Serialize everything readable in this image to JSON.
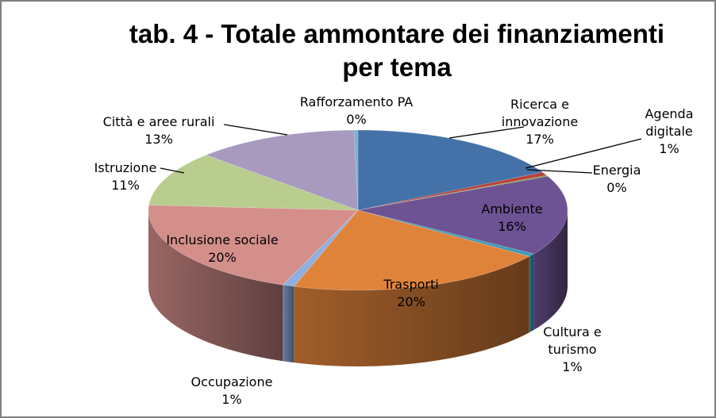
{
  "chart_data": {
    "type": "pie",
    "title_line1": "tab. 4 - Totale ammontare dei finanziamenti",
    "title_line2": "per tema",
    "colors_note": "3D pie chart",
    "slices": [
      {
        "name": "Ricerca e innovazione",
        "label_lines": [
          "Ricerca e",
          "innovazione"
        ],
        "pct_label": "17%",
        "value": 17,
        "color": "#4472a8"
      },
      {
        "name": "Agenda digitale",
        "label_lines": [
          "Agenda",
          "digitale"
        ],
        "pct_label": "1%",
        "value": 0.7,
        "color": "#b7433a"
      },
      {
        "name": "Energia",
        "label_lines": [
          "Energia"
        ],
        "pct_label": "0%",
        "value": 0.2,
        "color": "#7a9a3a"
      },
      {
        "name": "Ambiente",
        "label_lines": [
          "Ambiente"
        ],
        "pct_label": "16%",
        "value": 16,
        "color": "#6e5394"
      },
      {
        "name": "Cultura e turismo",
        "label_lines": [
          "Cultura e",
          "turismo"
        ],
        "pct_label": "1%",
        "value": 0.6,
        "color": "#3f9cb8"
      },
      {
        "name": "Trasporti",
        "label_lines": [
          "Trasporti"
        ],
        "pct_label": "20%",
        "value": 20,
        "color": "#e0833a"
      },
      {
        "name": "Occupazione",
        "label_lines": [
          "Occupazione"
        ],
        "pct_label": "1%",
        "value": 0.9,
        "color": "#8fb0de"
      },
      {
        "name": "Inclusione sociale",
        "label_lines": [
          "Inclusione sociale"
        ],
        "pct_label": "20%",
        "value": 20,
        "color": "#d48f8b"
      },
      {
        "name": "Istruzione",
        "label_lines": [
          "Istruzione"
        ],
        "pct_label": "11%",
        "value": 11,
        "color": "#b9cd8f"
      },
      {
        "name": "Città e aree rurali",
        "label_lines": [
          "Città e aree rurali"
        ],
        "pct_label": "13%",
        "value": 12.5,
        "color": "#a89abf"
      },
      {
        "name": "Rafforzamento PA",
        "label_lines": [
          "Rafforzamento PA"
        ],
        "pct_label": "0%",
        "value": 0.3,
        "color": "#7fb0d0"
      }
    ]
  }
}
